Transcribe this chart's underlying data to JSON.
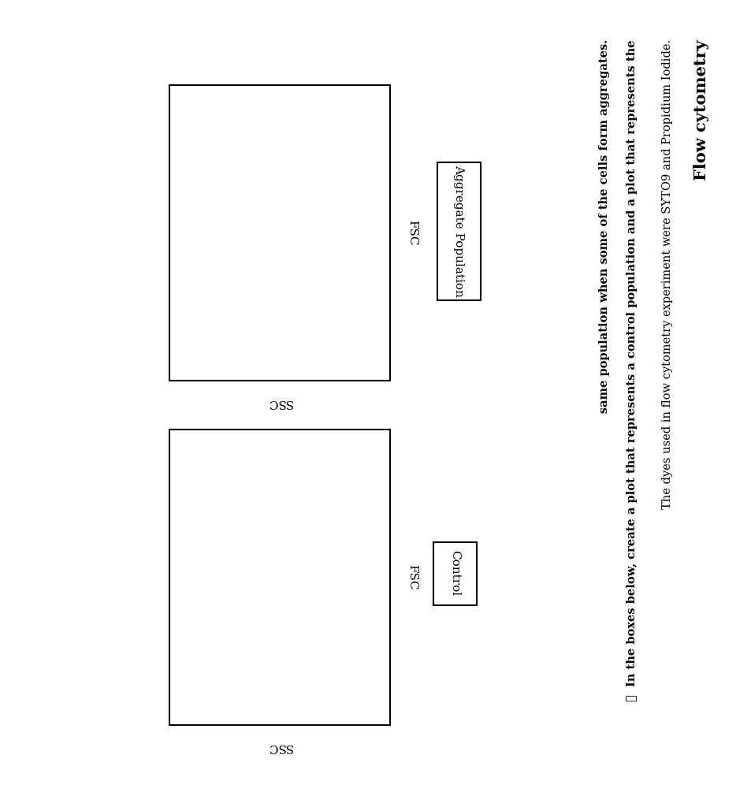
{
  "title": "Flow cytometry",
  "line1": "The dyes used in flow cytometry experiment were SYTO9 and Propidium Iodide.",
  "bullet_symbol": "❖",
  "bullet_text_line1": "In the boxes below, create a plot that represents a control population and a plot that represents the",
  "bullet_text_line2": "same population when some of the cells form aggregates.",
  "plot1_xlabel": "FSC",
  "plot1_ylabel": "SSC",
  "plot1_label": "Control",
  "plot2_xlabel": "FSC",
  "plot2_ylabel": "SSC",
  "plot2_label": "Aggregate Population",
  "bg_color": "#ffffff",
  "box_color": "#000000",
  "text_color": "#000000",
  "title_fontsize": 15,
  "body_fontsize": 10.5,
  "label_fontsize": 11,
  "axis_label_fontsize": 11
}
